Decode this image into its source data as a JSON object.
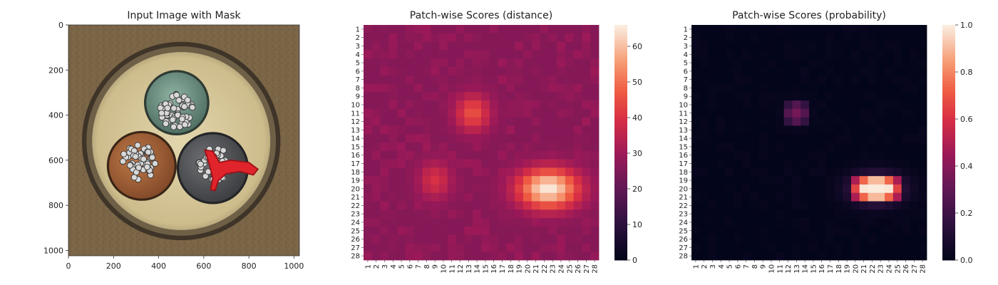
{
  "chart_data": [
    {
      "type": "image",
      "title": "Input Image with Mask",
      "xlim": [
        0,
        1024
      ],
      "ylim": [
        1024,
        0
      ],
      "xticks": [
        0,
        200,
        400,
        600,
        800,
        1000
      ],
      "yticks": [
        0,
        200,
        400,
        600,
        800,
        1000
      ],
      "xlabel": "",
      "ylabel": "",
      "content": {
        "background_color": "#7b6547",
        "cable_outer_color": "#3e3428",
        "insulation_color": "#d6c596",
        "conductors": [
          {
            "name": "green",
            "center": [
              480,
              345
            ],
            "radius": 140,
            "color": "#6d8f80"
          },
          {
            "name": "brown",
            "center": [
              325,
              625
            ],
            "radius": 150,
            "color": "#a5643a"
          },
          {
            "name": "grey",
            "center": [
              640,
              635
            ],
            "radius": 155,
            "color": "#55575a"
          }
        ],
        "anomaly_mask_color": "#e1242b",
        "defect_location": [
          720,
          670
        ]
      }
    },
    {
      "type": "heatmap",
      "title": "Patch-wise Scores (distance)",
      "grid": [
        28,
        28
      ],
      "xticklabels": [
        "1",
        "2",
        "3",
        "4",
        "5",
        "6",
        "7",
        "8",
        "9",
        "10",
        "11",
        "12",
        "13",
        "14",
        "15",
        "16",
        "17",
        "18",
        "19",
        "20",
        "21",
        "22",
        "23",
        "24",
        "25",
        "26",
        "27",
        "28"
      ],
      "yticklabels": [
        "1",
        "2",
        "3",
        "4",
        "5",
        "6",
        "7",
        "8",
        "9",
        "10",
        "11",
        "12",
        "13",
        "14",
        "15",
        "16",
        "17",
        "18",
        "19",
        "20",
        "21",
        "22",
        "23",
        "24",
        "25",
        "26",
        "27",
        "28"
      ],
      "colorbar": {
        "min": 0,
        "max": 66,
        "ticks": [
          0,
          10,
          20,
          30,
          40,
          50,
          60
        ]
      },
      "colormap": "rocket",
      "baseline": 26,
      "hotspots": [
        {
          "row": 20,
          "col": 22.5,
          "peak": 66,
          "spread_r": 1.7,
          "spread_c": 2.6
        },
        {
          "row": 11,
          "col": 13.5,
          "peak": 46,
          "spread_r": 1.6,
          "spread_c": 1.5
        },
        {
          "row": 19,
          "col": 9,
          "peak": 40,
          "spread_r": 1.6,
          "spread_c": 1.4
        }
      ]
    },
    {
      "type": "heatmap",
      "title": "Patch-wise Scores (probability)",
      "grid": [
        28,
        28
      ],
      "xticklabels": [
        "1",
        "2",
        "3",
        "4",
        "5",
        "6",
        "7",
        "8",
        "9",
        "10",
        "11",
        "12",
        "13",
        "14",
        "15",
        "16",
        "17",
        "18",
        "19",
        "20",
        "21",
        "22",
        "23",
        "24",
        "25",
        "26",
        "27",
        "28"
      ],
      "yticklabels": [
        "1",
        "2",
        "3",
        "4",
        "5",
        "6",
        "7",
        "8",
        "9",
        "10",
        "11",
        "12",
        "13",
        "14",
        "15",
        "16",
        "17",
        "18",
        "19",
        "20",
        "21",
        "22",
        "23",
        "24",
        "25",
        "26",
        "27",
        "28"
      ],
      "colorbar": {
        "min": 0.0,
        "max": 1.0,
        "ticks": [
          "0.0",
          "0.2",
          "0.4",
          "0.6",
          "0.8",
          "1.0"
        ]
      },
      "colormap": "rocket",
      "baseline": 0.0,
      "hotspots": [
        {
          "row": 20,
          "col": 22.5,
          "peak": 1.0,
          "spread_r": 1.3,
          "spread_c": 2.2
        },
        {
          "row": 11,
          "col": 13,
          "peak": 0.35,
          "spread_r": 1.0,
          "spread_c": 1.0
        }
      ]
    }
  ]
}
